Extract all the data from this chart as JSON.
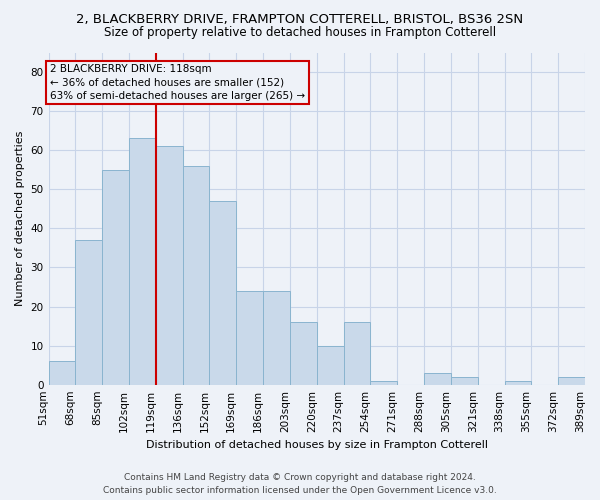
{
  "title": "2, BLACKBERRY DRIVE, FRAMPTON COTTERELL, BRISTOL, BS36 2SN",
  "subtitle": "Size of property relative to detached houses in Frampton Cotterell",
  "xlabel": "Distribution of detached houses by size in Frampton Cotterell",
  "ylabel": "Number of detached properties",
  "bar_values": [
    6,
    37,
    55,
    63,
    61,
    56,
    47,
    24,
    24,
    16,
    10,
    16,
    1,
    0,
    3,
    2,
    0,
    1,
    0,
    2
  ],
  "bar_labels": [
    "51sqm",
    "68sqm",
    "85sqm",
    "102sqm",
    "119sqm",
    "136sqm",
    "152sqm",
    "169sqm",
    "186sqm",
    "203sqm",
    "220sqm",
    "237sqm",
    "254sqm",
    "271sqm",
    "288sqm",
    "305sqm",
    "321sqm",
    "338sqm",
    "355sqm",
    "372sqm",
    "389sqm"
  ],
  "bar_color": "#c9d9ea",
  "bar_edge_color": "#8ab4cf",
  "property_line_color": "#cc0000",
  "ylim": [
    0,
    85
  ],
  "yticks": [
    0,
    10,
    20,
    30,
    40,
    50,
    60,
    70,
    80
  ],
  "annotation_title": "2 BLACKBERRY DRIVE: 118sqm",
  "annotation_line1": "← 36% of detached houses are smaller (152)",
  "annotation_line2": "63% of semi-detached houses are larger (265) →",
  "annotation_box_color": "#cc0000",
  "footer_line1": "Contains HM Land Registry data © Crown copyright and database right 2024.",
  "footer_line2": "Contains public sector information licensed under the Open Government Licence v3.0.",
  "bg_color": "#eef2f8",
  "grid_color": "#c8d4e8",
  "title_fontsize": 9.5,
  "subtitle_fontsize": 8.5,
  "axis_label_fontsize": 8,
  "tick_fontsize": 7.5,
  "footer_fontsize": 6.5,
  "annotation_fontsize": 7.5
}
